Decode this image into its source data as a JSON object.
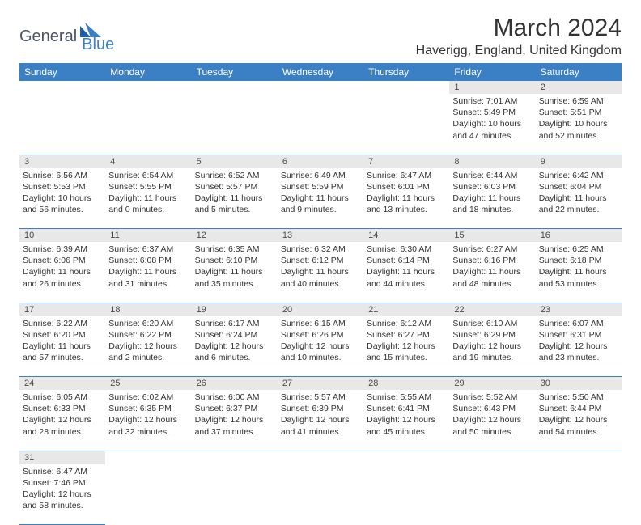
{
  "logo": {
    "general": "General",
    "blue": "Blue"
  },
  "title": "March 2024",
  "location": "Haverigg, England, United Kingdom",
  "colors": {
    "header_bg": "#3b7fc4",
    "header_fg": "#ffffff",
    "daynum_bg": "#e8e8e8",
    "border": "#3b7fc4",
    "text": "#333333"
  },
  "dow": [
    "Sunday",
    "Monday",
    "Tuesday",
    "Wednesday",
    "Thursday",
    "Friday",
    "Saturday"
  ],
  "weeks": [
    {
      "nums": [
        "",
        "",
        "",
        "",
        "",
        "1",
        "2"
      ],
      "cells": [
        null,
        null,
        null,
        null,
        null,
        {
          "sr": "Sunrise: 7:01 AM",
          "ss": "Sunset: 5:49 PM",
          "dl1": "Daylight: 10 hours",
          "dl2": "and 47 minutes."
        },
        {
          "sr": "Sunrise: 6:59 AM",
          "ss": "Sunset: 5:51 PM",
          "dl1": "Daylight: 10 hours",
          "dl2": "and 52 minutes."
        }
      ]
    },
    {
      "nums": [
        "3",
        "4",
        "5",
        "6",
        "7",
        "8",
        "9"
      ],
      "cells": [
        {
          "sr": "Sunrise: 6:56 AM",
          "ss": "Sunset: 5:53 PM",
          "dl1": "Daylight: 10 hours",
          "dl2": "and 56 minutes."
        },
        {
          "sr": "Sunrise: 6:54 AM",
          "ss": "Sunset: 5:55 PM",
          "dl1": "Daylight: 11 hours",
          "dl2": "and 0 minutes."
        },
        {
          "sr": "Sunrise: 6:52 AM",
          "ss": "Sunset: 5:57 PM",
          "dl1": "Daylight: 11 hours",
          "dl2": "and 5 minutes."
        },
        {
          "sr": "Sunrise: 6:49 AM",
          "ss": "Sunset: 5:59 PM",
          "dl1": "Daylight: 11 hours",
          "dl2": "and 9 minutes."
        },
        {
          "sr": "Sunrise: 6:47 AM",
          "ss": "Sunset: 6:01 PM",
          "dl1": "Daylight: 11 hours",
          "dl2": "and 13 minutes."
        },
        {
          "sr": "Sunrise: 6:44 AM",
          "ss": "Sunset: 6:03 PM",
          "dl1": "Daylight: 11 hours",
          "dl2": "and 18 minutes."
        },
        {
          "sr": "Sunrise: 6:42 AM",
          "ss": "Sunset: 6:04 PM",
          "dl1": "Daylight: 11 hours",
          "dl2": "and 22 minutes."
        }
      ]
    },
    {
      "nums": [
        "10",
        "11",
        "12",
        "13",
        "14",
        "15",
        "16"
      ],
      "cells": [
        {
          "sr": "Sunrise: 6:39 AM",
          "ss": "Sunset: 6:06 PM",
          "dl1": "Daylight: 11 hours",
          "dl2": "and 26 minutes."
        },
        {
          "sr": "Sunrise: 6:37 AM",
          "ss": "Sunset: 6:08 PM",
          "dl1": "Daylight: 11 hours",
          "dl2": "and 31 minutes."
        },
        {
          "sr": "Sunrise: 6:35 AM",
          "ss": "Sunset: 6:10 PM",
          "dl1": "Daylight: 11 hours",
          "dl2": "and 35 minutes."
        },
        {
          "sr": "Sunrise: 6:32 AM",
          "ss": "Sunset: 6:12 PM",
          "dl1": "Daylight: 11 hours",
          "dl2": "and 40 minutes."
        },
        {
          "sr": "Sunrise: 6:30 AM",
          "ss": "Sunset: 6:14 PM",
          "dl1": "Daylight: 11 hours",
          "dl2": "and 44 minutes."
        },
        {
          "sr": "Sunrise: 6:27 AM",
          "ss": "Sunset: 6:16 PM",
          "dl1": "Daylight: 11 hours",
          "dl2": "and 48 minutes."
        },
        {
          "sr": "Sunrise: 6:25 AM",
          "ss": "Sunset: 6:18 PM",
          "dl1": "Daylight: 11 hours",
          "dl2": "and 53 minutes."
        }
      ]
    },
    {
      "nums": [
        "17",
        "18",
        "19",
        "20",
        "21",
        "22",
        "23"
      ],
      "cells": [
        {
          "sr": "Sunrise: 6:22 AM",
          "ss": "Sunset: 6:20 PM",
          "dl1": "Daylight: 11 hours",
          "dl2": "and 57 minutes."
        },
        {
          "sr": "Sunrise: 6:20 AM",
          "ss": "Sunset: 6:22 PM",
          "dl1": "Daylight: 12 hours",
          "dl2": "and 2 minutes."
        },
        {
          "sr": "Sunrise: 6:17 AM",
          "ss": "Sunset: 6:24 PM",
          "dl1": "Daylight: 12 hours",
          "dl2": "and 6 minutes."
        },
        {
          "sr": "Sunrise: 6:15 AM",
          "ss": "Sunset: 6:26 PM",
          "dl1": "Daylight: 12 hours",
          "dl2": "and 10 minutes."
        },
        {
          "sr": "Sunrise: 6:12 AM",
          "ss": "Sunset: 6:27 PM",
          "dl1": "Daylight: 12 hours",
          "dl2": "and 15 minutes."
        },
        {
          "sr": "Sunrise: 6:10 AM",
          "ss": "Sunset: 6:29 PM",
          "dl1": "Daylight: 12 hours",
          "dl2": "and 19 minutes."
        },
        {
          "sr": "Sunrise: 6:07 AM",
          "ss": "Sunset: 6:31 PM",
          "dl1": "Daylight: 12 hours",
          "dl2": "and 23 minutes."
        }
      ]
    },
    {
      "nums": [
        "24",
        "25",
        "26",
        "27",
        "28",
        "29",
        "30"
      ],
      "cells": [
        {
          "sr": "Sunrise: 6:05 AM",
          "ss": "Sunset: 6:33 PM",
          "dl1": "Daylight: 12 hours",
          "dl2": "and 28 minutes."
        },
        {
          "sr": "Sunrise: 6:02 AM",
          "ss": "Sunset: 6:35 PM",
          "dl1": "Daylight: 12 hours",
          "dl2": "and 32 minutes."
        },
        {
          "sr": "Sunrise: 6:00 AM",
          "ss": "Sunset: 6:37 PM",
          "dl1": "Daylight: 12 hours",
          "dl2": "and 37 minutes."
        },
        {
          "sr": "Sunrise: 5:57 AM",
          "ss": "Sunset: 6:39 PM",
          "dl1": "Daylight: 12 hours",
          "dl2": "and 41 minutes."
        },
        {
          "sr": "Sunrise: 5:55 AM",
          "ss": "Sunset: 6:41 PM",
          "dl1": "Daylight: 12 hours",
          "dl2": "and 45 minutes."
        },
        {
          "sr": "Sunrise: 5:52 AM",
          "ss": "Sunset: 6:43 PM",
          "dl1": "Daylight: 12 hours",
          "dl2": "and 50 minutes."
        },
        {
          "sr": "Sunrise: 5:50 AM",
          "ss": "Sunset: 6:44 PM",
          "dl1": "Daylight: 12 hours",
          "dl2": "and 54 minutes."
        }
      ]
    },
    {
      "nums": [
        "31",
        "",
        "",
        "",
        "",
        "",
        ""
      ],
      "cells": [
        {
          "sr": "Sunrise: 6:47 AM",
          "ss": "Sunset: 7:46 PM",
          "dl1": "Daylight: 12 hours",
          "dl2": "and 58 minutes."
        },
        null,
        null,
        null,
        null,
        null,
        null
      ]
    }
  ]
}
